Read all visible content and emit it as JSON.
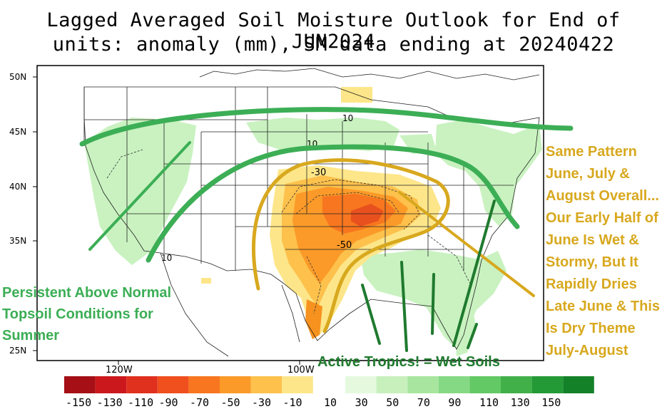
{
  "title": {
    "line1": "Lagged Averaged Soil Moisture Outlook for End of JUN2024",
    "line2": "units: anomaly (mm), SM data ending at 20240422"
  },
  "map": {
    "lat_labels": [
      "50N",
      "45N",
      "40N",
      "35N",
      "25N"
    ],
    "lon_labels": [
      "120W",
      "100W"
    ],
    "contour_labels": [
      "10",
      "10",
      "-30",
      "-50",
      "10"
    ]
  },
  "colorbar": {
    "labels": [
      "-150",
      "-130",
      "-110",
      "-90",
      "-70",
      "-50",
      "-30",
      "-10",
      "10",
      "30",
      "50",
      "70",
      "90",
      "110",
      "130",
      "150"
    ],
    "colors_negative": [
      "#a50f15",
      "#cb181d",
      "#e0301e",
      "#f04f1e",
      "#f7761f",
      "#fb9a29",
      "#fdc14c",
      "#fde68a"
    ],
    "colors_positive": [
      "#e5f9df",
      "#c7f0bd",
      "#a8e6a0",
      "#86d984",
      "#63c964",
      "#41b049",
      "#249a36",
      "#138128"
    ]
  },
  "annotations": {
    "left": "Persistent Above Normal Topsoil Conditions for Summer",
    "right": "Same Pattern June, July & August Overall... Our Early Half of June Is Wet & Stormy, But It Rapidly Dries Late June & This Is Dry Theme July-August",
    "bottom": "Active Tropics! = Wet Soils"
  },
  "colors": {
    "left_annotation": "#3cae55",
    "right_annotation": "#d8a81e",
    "bottom_annotation": "#1f7a2e"
  }
}
